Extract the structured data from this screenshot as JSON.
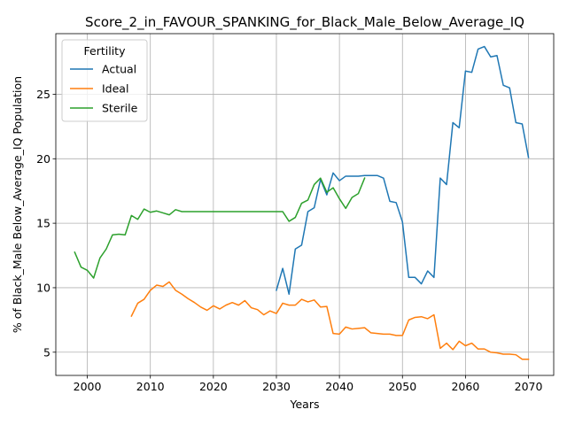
{
  "chart_data": {
    "type": "line",
    "title": "Score_2_in_FAVOUR_SPANKING_for_Black_Male_Below_Average_IQ",
    "xlabel": "Years",
    "ylabel": "% of Black_Male Below_Average_IQ Population",
    "xlim": [
      1995,
      2074
    ],
    "ylim": [
      3.2,
      29.7
    ],
    "xticks": [
      2000,
      2010,
      2020,
      2030,
      2040,
      2050,
      2060,
      2070
    ],
    "yticks": [
      5,
      10,
      15,
      20,
      25
    ],
    "grid": true,
    "legend": {
      "title": "Fertility",
      "placement": "top-left"
    },
    "series": [
      {
        "name": "Actual",
        "color": "#1f77b4",
        "x": [
          2030,
          2031,
          2032,
          2033,
          2034,
          2035,
          2036,
          2037,
          2038,
          2039,
          2040,
          2041,
          2042,
          2043,
          2044,
          2045,
          2046,
          2047,
          2048,
          2049,
          2050,
          2051,
          2052,
          2053,
          2054,
          2055,
          2056,
          2057,
          2058,
          2059,
          2060,
          2061,
          2062,
          2063,
          2064,
          2065,
          2066,
          2067,
          2068,
          2069,
          2070
        ],
        "values": [
          9.8,
          11.5,
          9.5,
          13.0,
          13.3,
          15.9,
          16.2,
          18.4,
          17.2,
          18.9,
          18.3,
          18.65,
          18.65,
          18.65,
          18.7,
          18.7,
          18.7,
          18.5,
          16.7,
          16.6,
          15.1,
          10.8,
          10.8,
          10.3,
          11.3,
          10.8,
          18.5,
          18.0,
          22.8,
          22.4,
          26.8,
          26.7,
          28.5,
          28.7,
          27.9,
          28.0,
          25.7,
          25.5,
          22.8,
          22.7,
          20.1
        ]
      },
      {
        "name": "Ideal",
        "color": "#ff7f0e",
        "x": [
          2007,
          2008,
          2009,
          2010,
          2011,
          2012,
          2013,
          2014,
          2015,
          2016,
          2017,
          2018,
          2019,
          2020,
          2021,
          2022,
          2023,
          2024,
          2025,
          2026,
          2027,
          2028,
          2029,
          2030,
          2031,
          2032,
          2033,
          2034,
          2035,
          2036,
          2037,
          2038,
          2039,
          2040,
          2041,
          2042,
          2043,
          2044,
          2045,
          2046,
          2047,
          2048,
          2049,
          2050,
          2051,
          2052,
          2053,
          2054,
          2055,
          2056,
          2057,
          2058,
          2059,
          2060,
          2061,
          2062,
          2063,
          2064,
          2065,
          2066,
          2067,
          2068,
          2069,
          2070
        ],
        "values": [
          7.8,
          8.8,
          9.1,
          9.8,
          10.2,
          10.1,
          10.45,
          9.8,
          9.5,
          9.15,
          8.85,
          8.5,
          8.25,
          8.6,
          8.35,
          8.65,
          8.85,
          8.65,
          9.0,
          8.45,
          8.3,
          7.9,
          8.2,
          8.0,
          8.8,
          8.65,
          8.65,
          9.1,
          8.9,
          9.05,
          8.5,
          8.55,
          6.45,
          6.4,
          6.95,
          6.8,
          6.85,
          6.9,
          6.5,
          6.45,
          6.4,
          6.4,
          6.3,
          6.3,
          7.5,
          7.7,
          7.75,
          7.6,
          7.9,
          5.3,
          5.7,
          5.2,
          5.85,
          5.5,
          5.7,
          5.25,
          5.25,
          5.0,
          4.95,
          4.85,
          4.85,
          4.8,
          4.45,
          4.45
        ]
      },
      {
        "name": "Sterile",
        "color": "#2ca02c",
        "x": [
          1998,
          1999,
          2000,
          2001,
          2002,
          2003,
          2004,
          2005,
          2006,
          2007,
          2008,
          2009,
          2010,
          2011,
          2012,
          2013,
          2014,
          2015,
          2016,
          2017,
          2018,
          2019,
          2020,
          2021,
          2022,
          2023,
          2024,
          2025,
          2026,
          2027,
          2028,
          2029,
          2030,
          2031,
          2032,
          2033,
          2034,
          2035,
          2036,
          2037,
          2038,
          2039,
          2040,
          2041,
          2042,
          2043,
          2044
        ],
        "values": [
          12.75,
          11.6,
          11.35,
          10.75,
          12.3,
          13.0,
          14.1,
          14.15,
          14.1,
          15.6,
          15.3,
          16.1,
          15.85,
          15.95,
          15.8,
          15.65,
          16.05,
          15.9,
          15.9,
          15.9,
          15.9,
          15.9,
          15.9,
          15.9,
          15.9,
          15.9,
          15.9,
          15.9,
          15.9,
          15.9,
          15.9,
          15.9,
          15.9,
          15.9,
          15.15,
          15.45,
          16.55,
          16.8,
          18.0,
          18.5,
          17.4,
          17.75,
          16.9,
          16.15,
          17.0,
          17.3,
          18.5
        ]
      }
    ]
  }
}
